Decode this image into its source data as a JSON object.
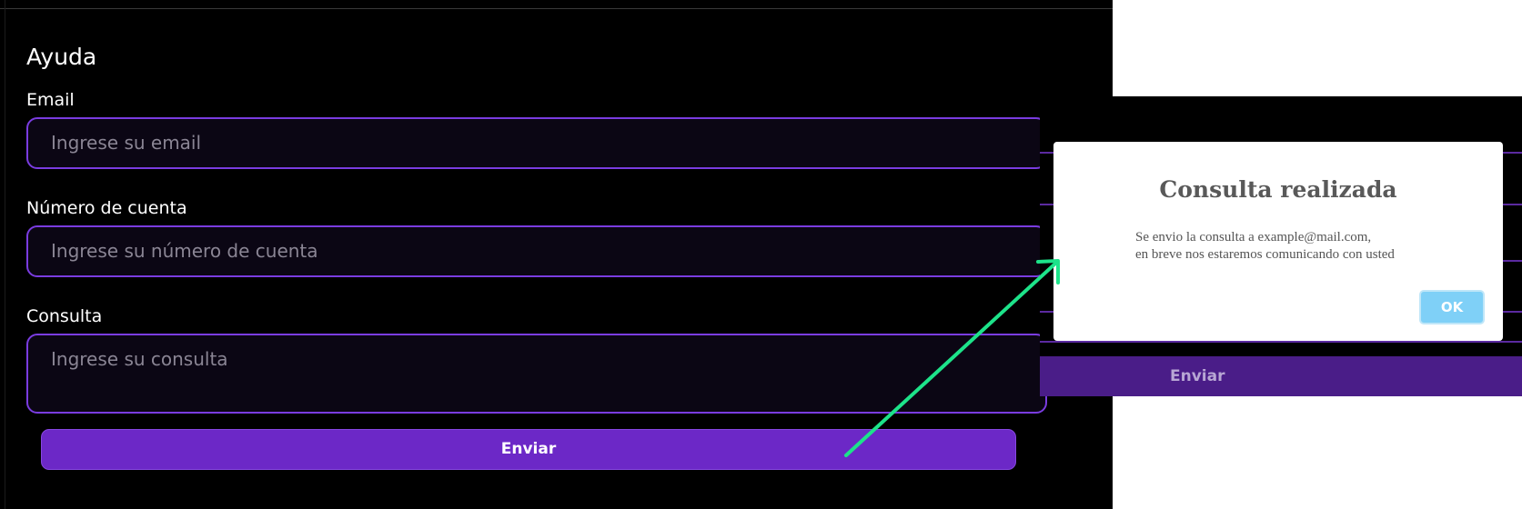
{
  "form": {
    "title": "Ayuda",
    "email_label": "Email",
    "email_placeholder": "Ingrese su email",
    "account_label": "Número de cuenta",
    "account_placeholder": "Ingrese su número de cuenta",
    "query_label": "Consulta",
    "query_placeholder": "Ingrese su consulta",
    "submit_label": "Enviar"
  },
  "dialog": {
    "title": "Consulta realizada",
    "message_line1": "Se envio la consulta a example@mail.com,",
    "message_line2": "en breve nos estaremos comunicando con usted",
    "ok_label": "OK"
  },
  "background_submit_label": "Enviar",
  "colors": {
    "accent": "#6c28c7",
    "field_border": "#7a3ce0",
    "ok_button": "#7fd0f7",
    "arrow": "#1de38a"
  }
}
